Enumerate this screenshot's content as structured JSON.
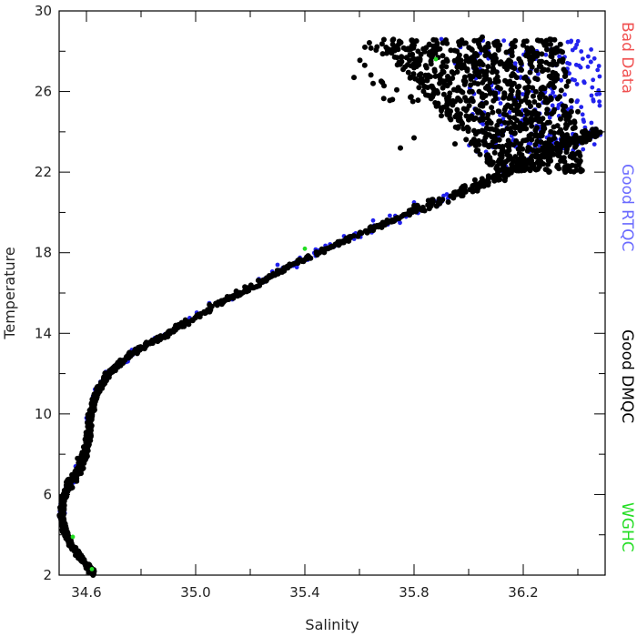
{
  "chart_data": {
    "type": "scatter",
    "title": "",
    "xlabel": "Salinity",
    "ylabel": "Temperature",
    "xlim": [
      34.5,
      36.5
    ],
    "ylim": [
      2,
      30
    ],
    "xticks": [
      34.6,
      35.0,
      35.4,
      35.8,
      36.2
    ],
    "xtick_labels": [
      "34.6",
      "35.0",
      "35.4",
      "35.8",
      "36.2"
    ],
    "yticks": [
      2,
      6,
      10,
      14,
      18,
      22,
      26,
      30
    ],
    "ytick_labels": [
      "2",
      "6",
      "10",
      "14",
      "18",
      "22",
      "26",
      "30"
    ],
    "grid": false,
    "legend_placement": "right (vertical text)",
    "legend": [
      {
        "label": "Bad Data",
        "color": "#f05050"
      },
      {
        "label": "Good RTQC",
        "color": "#6a6aff"
      },
      {
        "label": "Good DMQC",
        "color": "#000000"
      },
      {
        "label": "WGHC",
        "color": "#22dd22"
      }
    ],
    "series": [
      {
        "name": "Good DMQC",
        "color": "#000000",
        "profile": [
          [
            34.63,
            2.1
          ],
          [
            34.6,
            2.5
          ],
          [
            34.57,
            3.0
          ],
          [
            34.54,
            3.6
          ],
          [
            34.52,
            4.2
          ],
          [
            34.51,
            4.8
          ],
          [
            34.51,
            5.4
          ],
          [
            34.52,
            6.0
          ],
          [
            34.54,
            6.6
          ],
          [
            34.57,
            7.2
          ],
          [
            34.59,
            7.8
          ],
          [
            34.6,
            8.4
          ],
          [
            34.61,
            9.0
          ],
          [
            34.61,
            9.6
          ],
          [
            34.62,
            10.2
          ],
          [
            34.63,
            10.8
          ],
          [
            34.65,
            11.4
          ],
          [
            34.68,
            12.0
          ],
          [
            34.73,
            12.6
          ],
          [
            34.8,
            13.3
          ],
          [
            34.9,
            14.0
          ],
          [
            35.0,
            14.8
          ],
          [
            35.1,
            15.6
          ],
          [
            35.22,
            16.4
          ],
          [
            35.34,
            17.3
          ],
          [
            35.46,
            18.1
          ],
          [
            35.58,
            18.8
          ],
          [
            35.7,
            19.5
          ],
          [
            35.82,
            20.2
          ],
          [
            35.95,
            20.9
          ],
          [
            36.08,
            21.6
          ],
          [
            36.2,
            22.4
          ],
          [
            36.3,
            23.1
          ],
          [
            36.4,
            23.6
          ],
          [
            36.48,
            24.0
          ]
        ],
        "cloud": {
          "salinity_range": [
            35.6,
            36.45
          ],
          "temperature_range": [
            22.0,
            28.6
          ],
          "note_points": [
            [
              35.62,
              28.2
            ],
            [
              35.7,
              27.9
            ],
            [
              35.8,
              28.3
            ],
            [
              35.58,
              26.7
            ],
            [
              35.65,
              26.4
            ],
            [
              35.85,
              26.2
            ],
            [
              35.95,
              25.5
            ],
            [
              35.9,
              24.8
            ],
            [
              35.8,
              23.7
            ],
            [
              35.75,
              23.2
            ],
            [
              35.95,
              23.4
            ],
            [
              36.0,
              24.6
            ],
            [
              36.1,
              27.5
            ],
            [
              36.2,
              28.3
            ],
            [
              36.05,
              28.7
            ],
            [
              36.3,
              26.4
            ],
            [
              36.4,
              25.0
            ],
            [
              36.35,
              23.8
            ],
            [
              36.15,
              22.8
            ],
            [
              36.25,
              24.2
            ]
          ]
        }
      },
      {
        "name": "Good RTQC",
        "color": "#2222ee",
        "points": [
          [
            35.9,
            28.6
          ],
          [
            35.97,
            28.2
          ],
          [
            36.1,
            28.5
          ],
          [
            36.25,
            28.0
          ],
          [
            36.32,
            27.3
          ],
          [
            36.38,
            26.6
          ],
          [
            36.45,
            25.8
          ],
          [
            36.48,
            25.3
          ],
          [
            36.42,
            24.6
          ],
          [
            36.15,
            27.9
          ],
          [
            36.05,
            27.0
          ],
          [
            35.95,
            27.4
          ],
          [
            36.28,
            26.0
          ],
          [
            36.2,
            24.8
          ],
          [
            35.92,
            20.9
          ],
          [
            35.8,
            20.5
          ],
          [
            35.65,
            19.6
          ],
          [
            35.3,
            17.4
          ],
          [
            35.05,
            15.5
          ],
          [
            34.62,
            10.5
          ],
          [
            34.6,
            9.8
          ],
          [
            34.64,
            11.0
          ],
          [
            34.56,
            7.4
          ],
          [
            34.58,
            7.9
          ]
        ]
      },
      {
        "name": "WGHC",
        "color": "#22dd22",
        "points": [
          [
            35.4,
            18.2
          ],
          [
            35.88,
            27.6
          ],
          [
            34.55,
            3.9
          ],
          [
            34.62,
            2.3
          ]
        ]
      }
    ]
  }
}
